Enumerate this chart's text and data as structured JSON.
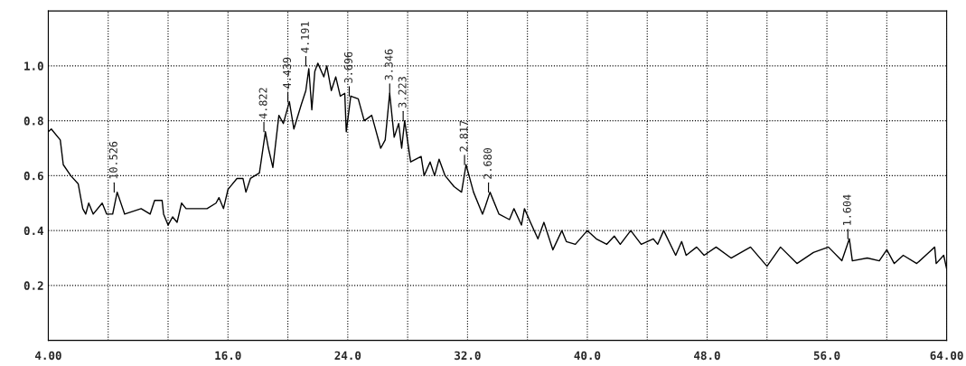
{
  "chart_data": {
    "type": "line",
    "x": [
      4.0,
      4.2,
      4.8,
      5.0,
      5.5,
      6.0,
      6.3,
      6.5,
      6.7,
      7.0,
      7.6,
      7.9,
      8.3,
      8.6,
      9.1,
      10.2,
      10.8,
      11.1,
      11.6,
      11.7,
      12.0,
      12.3,
      12.6,
      12.9,
      13.2,
      14.6,
      15.2,
      15.4,
      15.7,
      16.0,
      16.6,
      17.0,
      17.2,
      17.5,
      17.8,
      18.1,
      18.5,
      18.7,
      19.0,
      19.4,
      19.7,
      20.1,
      20.4,
      20.9,
      21.2,
      21.4,
      21.6,
      21.8,
      22.0,
      22.4,
      22.6,
      22.9,
      23.2,
      23.5,
      23.8,
      23.9,
      24.2,
      24.7,
      25.1,
      25.6,
      26.2,
      26.5,
      26.8,
      27.1,
      27.4,
      27.6,
      27.8,
      28.2,
      28.9,
      29.1,
      29.5,
      29.8,
      30.1,
      30.5,
      31.1,
      31.6,
      31.9,
      32.4,
      33.0,
      33.2,
      33.5,
      34.1,
      34.8,
      35.1,
      35.6,
      35.8,
      36.2,
      36.7,
      37.1,
      37.7,
      38.3,
      38.6,
      39.2,
      40.0,
      40.6,
      41.3,
      41.8,
      42.2,
      42.9,
      43.6,
      44.4,
      44.7,
      45.1,
      45.9,
      46.3,
      46.6,
      47.3,
      47.8,
      48.6,
      49.6,
      50.9,
      52.0,
      52.9,
      54.0,
      55.1,
      56.1,
      57.0,
      57.5,
      57.7,
      58.7,
      59.5,
      60.0,
      60.5,
      61.1,
      62.0,
      62.8,
      63.2,
      63.3,
      63.8,
      64.0
    ],
    "values": [
      0.76,
      0.77,
      0.73,
      0.64,
      0.6,
      0.57,
      0.48,
      0.46,
      0.5,
      0.46,
      0.5,
      0.46,
      0.46,
      0.54,
      0.46,
      0.48,
      0.46,
      0.51,
      0.51,
      0.46,
      0.42,
      0.45,
      0.43,
      0.5,
      0.48,
      0.48,
      0.5,
      0.52,
      0.48,
      0.55,
      0.59,
      0.59,
      0.54,
      0.59,
      0.6,
      0.61,
      0.76,
      0.7,
      0.63,
      0.82,
      0.79,
      0.87,
      0.77,
      0.86,
      0.91,
      0.99,
      0.84,
      0.98,
      1.01,
      0.96,
      1.0,
      0.91,
      0.96,
      0.89,
      0.9,
      0.76,
      0.89,
      0.88,
      0.8,
      0.82,
      0.7,
      0.73,
      0.9,
      0.74,
      0.79,
      0.7,
      0.8,
      0.65,
      0.67,
      0.6,
      0.65,
      0.6,
      0.66,
      0.6,
      0.56,
      0.54,
      0.64,
      0.54,
      0.46,
      0.49,
      0.54,
      0.46,
      0.44,
      0.48,
      0.42,
      0.48,
      0.43,
      0.37,
      0.43,
      0.33,
      0.4,
      0.36,
      0.35,
      0.4,
      0.37,
      0.35,
      0.38,
      0.35,
      0.4,
      0.35,
      0.37,
      0.35,
      0.4,
      0.31,
      0.36,
      0.31,
      0.34,
      0.31,
      0.34,
      0.3,
      0.34,
      0.27,
      0.34,
      0.28,
      0.32,
      0.34,
      0.29,
      0.37,
      0.29,
      0.3,
      0.29,
      0.33,
      0.28,
      0.31,
      0.28,
      0.32,
      0.34,
      0.28,
      0.31,
      0.26
    ],
    "color": "#000000",
    "xlim": [
      4,
      64
    ],
    "xticks": [
      {
        "value": 4,
        "label": "4.00"
      },
      {
        "value": 8,
        "label": null
      },
      {
        "value": 12,
        "label": null
      },
      {
        "value": 16,
        "label": "16.0"
      },
      {
        "value": 20,
        "label": null
      },
      {
        "value": 24,
        "label": "24.0"
      },
      {
        "value": 28,
        "label": null
      },
      {
        "value": 32,
        "label": "32.0"
      },
      {
        "value": 36,
        "label": null
      },
      {
        "value": 40,
        "label": "40.0"
      },
      {
        "value": 44,
        "label": null
      },
      {
        "value": 48,
        "label": "48.0"
      },
      {
        "value": 52,
        "label": null
      },
      {
        "value": 56,
        "label": "56.0"
      },
      {
        "value": 60,
        "label": null
      },
      {
        "value": 64,
        "label": "64.00"
      }
    ],
    "ylim": [
      0,
      1.2
    ],
    "yticks": [
      0.2,
      0.4,
      0.6,
      0.8,
      {
        "value": 1.0,
        "label": "1.0"
      }
    ],
    "grid": true,
    "line_style": "solid",
    "annotations": [
      {
        "text": "10.526",
        "x": 8.4,
        "y": 0.54
      },
      {
        "text": "4.822",
        "x": 18.4,
        "y": 0.76
      },
      {
        "text": "4.439",
        "x": 20.0,
        "y": 0.87
      },
      {
        "text": "4.191",
        "x": 21.2,
        "y": 1.0
      },
      {
        "text": "3.696",
        "x": 24.1,
        "y": 0.89
      },
      {
        "text": "3.346",
        "x": 26.8,
        "y": 0.9
      },
      {
        "text": "3.223",
        "x": 27.7,
        "y": 0.8
      },
      {
        "text": "2.817",
        "x": 31.8,
        "y": 0.64
      },
      {
        "text": "2.680",
        "x": 33.4,
        "y": 0.54
      },
      {
        "text": "1.604",
        "x": 57.4,
        "y": 0.37
      }
    ]
  }
}
